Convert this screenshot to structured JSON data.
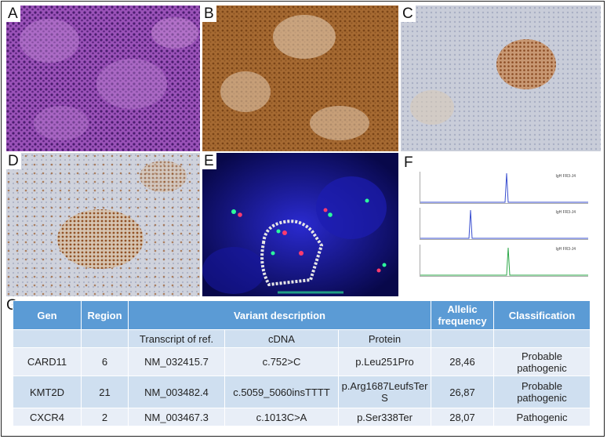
{
  "panels": {
    "a": {
      "label": "A"
    },
    "b": {
      "label": "B"
    },
    "c": {
      "label": "C"
    },
    "d": {
      "label": "D"
    },
    "e": {
      "label": "E"
    },
    "f": {
      "label": "F",
      "traces": [
        "IgH FR3-J4",
        "IgH FR3-J4",
        "IgH FR3-J4"
      ]
    },
    "g": {
      "label": "G"
    }
  },
  "colors": {
    "table_header": "#5b9bd5",
    "row_light": "#e8eef7",
    "row_dark": "#cfdff0",
    "he_stain": "#8a3fa8",
    "dab_brown": "#8b5a2b",
    "fish_blue": "#1a1a9c"
  },
  "table": {
    "headers": {
      "gen": "Gen",
      "region": "Region",
      "variant": "Variant description",
      "allelic": "Allelic frequency",
      "classification": "Classification"
    },
    "subheaders": {
      "transcript": "Transcript of ref.",
      "cdna": "cDNA",
      "protein": "Protein"
    },
    "rows": [
      {
        "gen": "CARD11",
        "region": "6",
        "transcript": "NM_032415.7",
        "cdna": "c.752>C",
        "protein": "p.Leu251Pro",
        "allelic": "28,46",
        "classification": "Probable pathogenic"
      },
      {
        "gen": "KMT2D",
        "region": "21",
        "transcript": "NM_003482.4",
        "cdna": "c.5059_5060insTTTT",
        "protein": "p.Arg1687LeufsTerS",
        "allelic": "26,87",
        "classification": "Probable pathogenic"
      },
      {
        "gen": "CXCR4",
        "region": "2",
        "transcript": "NM_003467.3",
        "cdna": "c.1013C>A",
        "protein": "p.Ser338Ter",
        "allelic": "28,07",
        "classification": "Pathogenic"
      }
    ]
  }
}
